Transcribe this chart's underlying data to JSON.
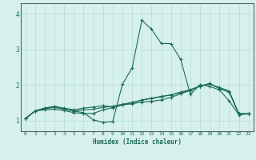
{
  "xlabel": "Humidex (Indice chaleur)",
  "bg_color": "#d6f0ec",
  "line_color": "#1a6b5a",
  "grid_color": "#b8dcd6",
  "xlim": [
    -0.5,
    23.5
  ],
  "ylim": [
    0.7,
    4.3
  ],
  "xticks": [
    0,
    1,
    2,
    3,
    4,
    5,
    6,
    7,
    8,
    9,
    10,
    11,
    12,
    13,
    14,
    15,
    16,
    17,
    18,
    19,
    20,
    21,
    22,
    23
  ],
  "yticks": [
    1,
    2,
    3,
    4
  ],
  "lines": [
    [
      1.05,
      1.27,
      1.33,
      1.37,
      1.32,
      1.27,
      1.22,
      1.02,
      0.95,
      0.97,
      2.02,
      2.48,
      3.82,
      3.57,
      3.17,
      3.16,
      2.72,
      1.73,
      2.01,
      1.96,
      1.86,
      1.55,
      1.16,
      1.19
    ],
    [
      1.05,
      1.27,
      1.35,
      1.4,
      1.35,
      1.3,
      1.35,
      1.38,
      1.42,
      1.38,
      1.44,
      1.47,
      1.52,
      1.54,
      1.58,
      1.65,
      1.75,
      1.85,
      1.97,
      2.02,
      1.93,
      1.83,
      1.19,
      1.19
    ],
    [
      1.05,
      1.27,
      1.35,
      1.38,
      1.32,
      1.27,
      1.3,
      1.32,
      1.37,
      1.4,
      1.46,
      1.51,
      1.57,
      1.62,
      1.67,
      1.72,
      1.8,
      1.87,
      1.97,
      2.04,
      1.9,
      1.8,
      1.19,
      1.19
    ],
    [
      1.05,
      1.27,
      1.3,
      1.32,
      1.28,
      1.22,
      1.2,
      1.2,
      1.3,
      1.36,
      1.44,
      1.5,
      1.58,
      1.63,
      1.68,
      1.72,
      1.78,
      1.85,
      1.97,
      2.04,
      1.9,
      1.8,
      1.19,
      1.19
    ]
  ]
}
